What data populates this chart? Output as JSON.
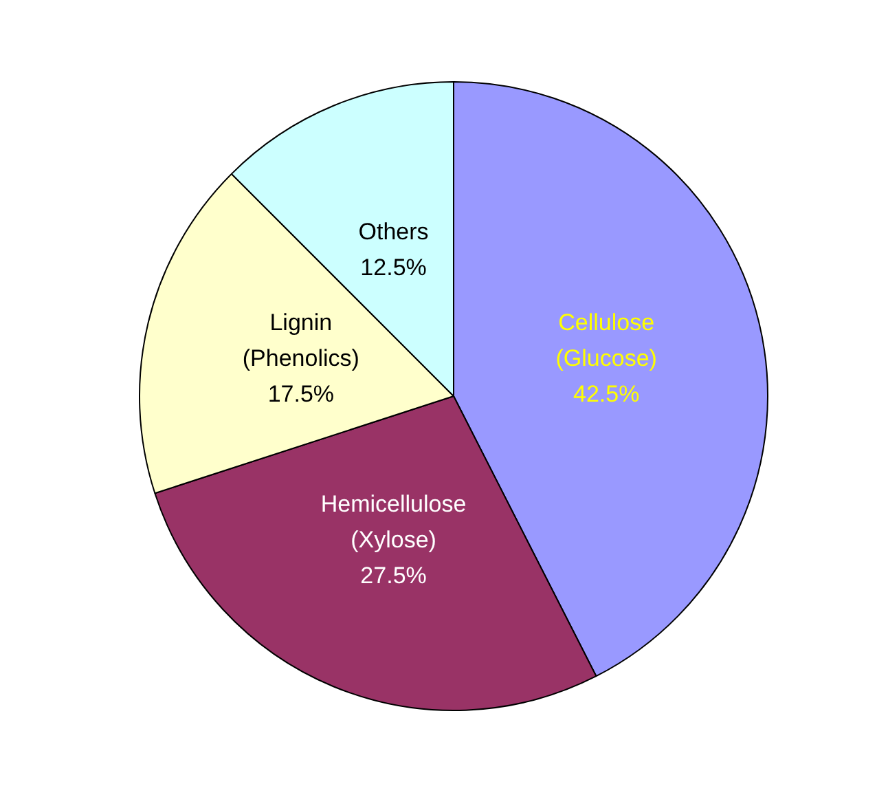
{
  "chart_data": {
    "type": "pie",
    "categories": [
      "Cellulose (Glucose)",
      "Hemicellulose (Xylose)",
      "Lignin (Phenolics)",
      "Others"
    ],
    "values": [
      42.5,
      27.5,
      17.5,
      12.5
    ],
    "colors": [
      "#9999ff",
      "#993366",
      "#ffffcc",
      "#ccffff"
    ],
    "value_labels": [
      "42.5%",
      "27.5%",
      "17.5%",
      "12.5%"
    ],
    "legend": false
  }
}
